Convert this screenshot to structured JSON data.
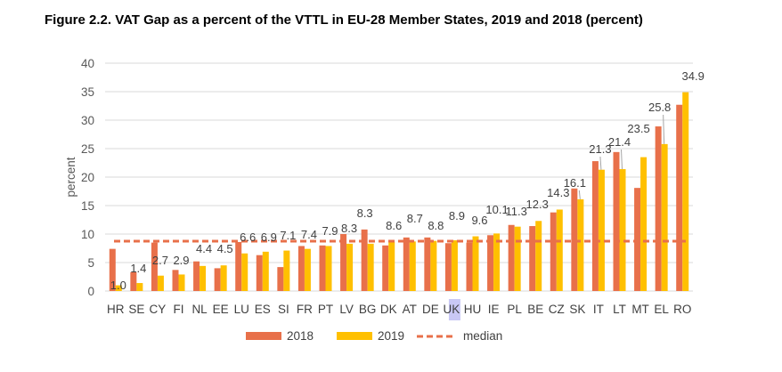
{
  "figure_title": "Figure 2.2. VAT Gap as a percent of the VTTL in EU-28 Member States, 2019 and 2018 (percent)",
  "chart_data": {
    "type": "bar",
    "title": "Figure 2.2. VAT Gap as a percent of the VTTL in EU-28 Member States, 2019 and 2018 (percent)",
    "xlabel": "",
    "ylabel": "percent",
    "ylim": [
      0,
      40
    ],
    "yticks": [
      0,
      5,
      10,
      15,
      20,
      25,
      30,
      35,
      40
    ],
    "grid": true,
    "legend_position": "bottom",
    "categories": [
      "HR",
      "SE",
      "CY",
      "FI",
      "NL",
      "EE",
      "LU",
      "ES",
      "SI",
      "FR",
      "PT",
      "LV",
      "BG",
      "DK",
      "AT",
      "DE",
      "UK",
      "HU",
      "IE",
      "PL",
      "BE",
      "CZ",
      "SK",
      "IT",
      "LT",
      "MT",
      "EL",
      "RO"
    ],
    "series": [
      {
        "name": "2018",
        "color": "#E8704A",
        "values": [
          7.4,
          3.3,
          8.5,
          3.7,
          5.2,
          4.0,
          8.6,
          6.3,
          4.2,
          7.9,
          8.0,
          10.0,
          10.8,
          8.0,
          9.4,
          9.4,
          8.4,
          8.5,
          9.8,
          11.6,
          11.4,
          13.8,
          18.0,
          22.8,
          24.4,
          18.1,
          28.9,
          32.7
        ]
      },
      {
        "name": "2019",
        "color": "#FFC000",
        "values": [
          1.0,
          1.4,
          2.7,
          2.9,
          4.4,
          4.5,
          6.6,
          6.9,
          7.1,
          7.4,
          7.9,
          8.3,
          8.3,
          8.6,
          8.7,
          8.8,
          8.9,
          9.6,
          10.1,
          11.3,
          12.3,
          14.3,
          16.1,
          21.3,
          21.4,
          23.5,
          25.8,
          34.9
        ]
      }
    ],
    "data_labels": [
      "1.0",
      "1.4",
      "2.7",
      "2.9",
      "4.4",
      "4.5",
      "6.6",
      "6.9",
      "7.1",
      "7.4",
      "7.9",
      "8.3",
      "8.3",
      "8.6",
      "8.7",
      "8.8",
      "8.9",
      "9.6",
      "10.1",
      "11.3",
      "12.3",
      "14.3",
      "16.1",
      "21.3",
      "21.4",
      "23.5",
      "25.8",
      "34.9"
    ],
    "median": {
      "name": "median",
      "value": 8.75,
      "color": "#E8704A",
      "style": "dashed"
    },
    "highlight_category": "UK",
    "highlight_color": "#C9C8F5"
  }
}
